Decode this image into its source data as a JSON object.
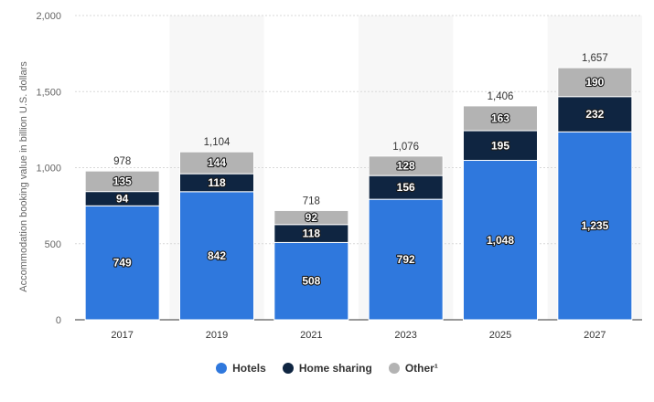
{
  "chart_data": {
    "type": "bar",
    "stacked": true,
    "categories": [
      "2017",
      "2019",
      "2021",
      "2023",
      "2025",
      "2027"
    ],
    "series": [
      {
        "name": "Hotels",
        "values": [
          749,
          842,
          508,
          792,
          1048,
          1235
        ],
        "color": "#2f78dd"
      },
      {
        "name": "Home sharing",
        "values": [
          94,
          118,
          118,
          156,
          195,
          232
        ],
        "color": "#0f2541"
      },
      {
        "name": "Other¹",
        "values": [
          135,
          144,
          92,
          128,
          163,
          190
        ],
        "color": "#b3b3b3"
      }
    ],
    "totals": [
      978,
      1104,
      718,
      1076,
      1406,
      1657
    ],
    "total_labels": [
      "978",
      "1,104",
      "718",
      "1,076",
      "1,406",
      "1,657"
    ],
    "value_labels": [
      [
        "749",
        "842",
        "508",
        "792",
        "1,048",
        "1,235"
      ],
      [
        "94",
        "118",
        "118",
        "156",
        "195",
        "232"
      ],
      [
        "135",
        "144",
        "92",
        "128",
        "163",
        "190"
      ]
    ],
    "yticks": [
      0,
      500,
      1000,
      1500,
      2000
    ],
    "ytick_labels": [
      "0",
      "500",
      "1,000",
      "1,500",
      "2,000"
    ],
    "ylim": [
      0,
      2000
    ],
    "ylabel": "Accommodation booking value in billion U.S. dollars",
    "xlabel": "",
    "grid": true,
    "legend_position": "bottom-center",
    "alternate_column_shading": "#f7f7f7"
  }
}
